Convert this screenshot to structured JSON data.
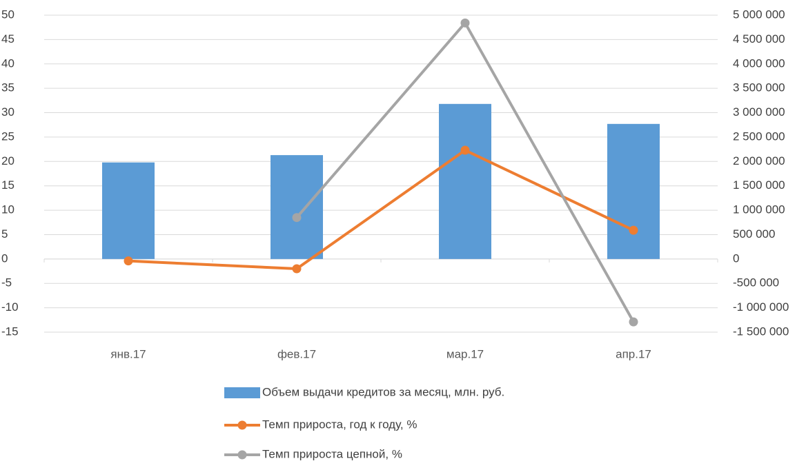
{
  "chart_data": {
    "type": "bar-line",
    "categories": [
      "янв.17",
      "фев.17",
      "мар.17",
      "апр.17"
    ],
    "series": [
      {
        "name": "Объем выдачи кредитов за месяц, млн. руб.",
        "type": "bar",
        "axis": "y2",
        "color": "#5b9bd5",
        "values": [
          1980000,
          2130000,
          3180000,
          2770000
        ]
      },
      {
        "name": "Темп прироста, год к году, %",
        "type": "line",
        "color": "#ed7d31",
        "values": [
          -0.4,
          -2.0,
          22.3,
          5.9
        ]
      },
      {
        "name": "Темп прироста цепной, %",
        "type": "line",
        "color": "#a5a5a5",
        "values": [
          null,
          8.5,
          48.4,
          -12.9
        ]
      }
    ],
    "ylim": [
      -15,
      50
    ],
    "yticks": [
      -15,
      -10,
      -5,
      0,
      5,
      10,
      15,
      20,
      25,
      30,
      35,
      40,
      45,
      50
    ],
    "y2lim": [
      -1500000,
      5000000
    ],
    "y2ticks": [
      {
        "value": -1500000,
        "label": "-1 500 000"
      },
      {
        "value": -1000000,
        "label": "-1 000 000"
      },
      {
        "value": -500000,
        "label": "-500 000"
      },
      0,
      {
        "value": 500000,
        "label": "500 000"
      },
      {
        "value": 1000000,
        "label": "1 000 000"
      },
      {
        "value": 1500000,
        "label": "1 500 000"
      },
      {
        "value": 2000000,
        "label": "2 000 000"
      },
      {
        "value": 2500000,
        "label": "2 500 000"
      },
      {
        "value": 3000000,
        "label": "3 000 000"
      },
      {
        "value": 3500000,
        "label": "3 500 000"
      },
      {
        "value": 4000000,
        "label": "4 000 000"
      },
      {
        "value": 4500000,
        "label": "4 500 000"
      },
      {
        "value": 5000000,
        "label": "5 000 000"
      }
    ],
    "grid": true
  }
}
